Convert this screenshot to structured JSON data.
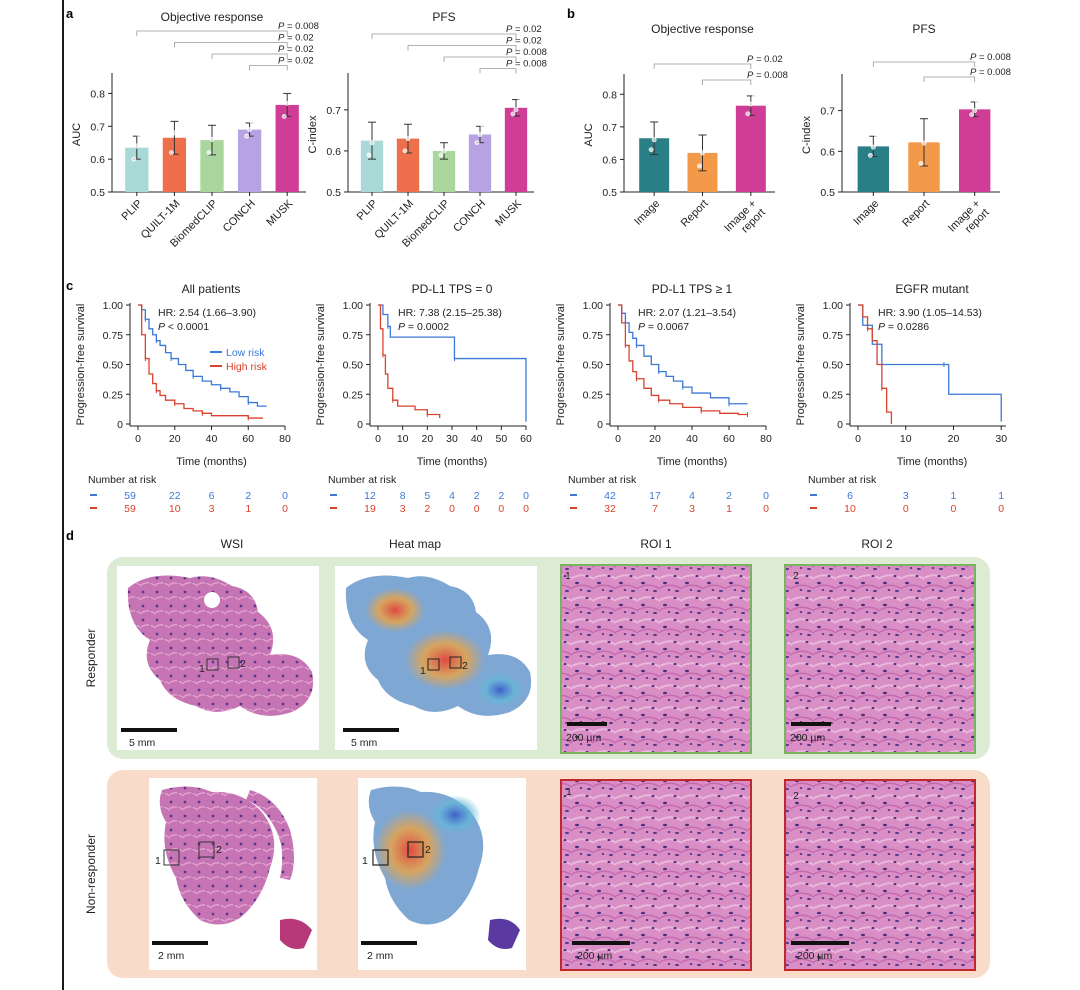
{
  "panel_letters": [
    "a",
    "b",
    "c",
    "d"
  ],
  "chart_data": [
    {
      "id": "a-objective-response",
      "type": "bar",
      "title": "Objective response",
      "ylabel": "AUC",
      "ylim": [
        0.5,
        0.85
      ],
      "yticks": [
        0.5,
        0.6,
        0.7,
        0.8
      ],
      "ytick_labels": [
        "0.5",
        "0.6",
        "0.7",
        "0.8"
      ],
      "categories": [
        "PLIP",
        "QUILT-1M",
        "BiomedCLIP",
        "CONCH",
        "MUSK"
      ],
      "values": [
        0.635,
        0.665,
        0.658,
        0.69,
        0.765
      ],
      "errors": [
        0.035,
        0.05,
        0.045,
        0.02,
        0.035
      ],
      "points": [
        [
          0.6,
          0.64,
          0.67
        ],
        [
          0.62,
          0.68,
          0.7
        ],
        [
          0.62,
          0.66,
          0.69
        ],
        [
          0.67,
          0.69,
          0.71
        ],
        [
          0.73,
          0.77,
          0.79
        ]
      ],
      "colors": [
        "#a9d9d6",
        "#ee6f4c",
        "#a8d69d",
        "#b7a2e3",
        "#cf3d97"
      ],
      "comparisons": [
        {
          "from": 0,
          "to": 4,
          "label": "P = 0.008"
        },
        {
          "from": 1,
          "to": 4,
          "label": "P = 0.02"
        },
        {
          "from": 2,
          "to": 4,
          "label": "P = 0.02"
        },
        {
          "from": 3,
          "to": 4,
          "label": "P = 0.02"
        }
      ]
    },
    {
      "id": "a-pfs",
      "type": "bar",
      "title": "PFS",
      "ylabel": "C-index",
      "ylim": [
        0.5,
        0.78
      ],
      "yticks": [
        0.5,
        0.6,
        0.7
      ],
      "ytick_labels": [
        "0.5",
        "0.6",
        "0.7"
      ],
      "categories": [
        "PLIP",
        "QUILT-1M",
        "BiomedCLIP",
        "CONCH",
        "MUSK"
      ],
      "values": [
        0.625,
        0.63,
        0.6,
        0.64,
        0.705
      ],
      "errors": [
        0.045,
        0.035,
        0.02,
        0.02,
        0.02
      ],
      "points": [
        [
          0.59,
          0.62,
          0.66
        ],
        [
          0.6,
          0.63,
          0.65
        ],
        [
          0.59,
          0.6,
          0.61
        ],
        [
          0.62,
          0.64,
          0.66
        ],
        [
          0.69,
          0.7,
          0.72
        ]
      ],
      "colors": [
        "#a9d9d6",
        "#ee6f4c",
        "#a8d69d",
        "#b7a2e3",
        "#cf3d97"
      ],
      "comparisons": [
        {
          "from": 0,
          "to": 4,
          "label": "P = 0.02"
        },
        {
          "from": 1,
          "to": 4,
          "label": "P = 0.02"
        },
        {
          "from": 2,
          "to": 4,
          "label": "P = 0.008"
        },
        {
          "from": 3,
          "to": 4,
          "label": "P = 0.008"
        }
      ]
    },
    {
      "id": "b-objective-response",
      "type": "bar",
      "title": "Objective response",
      "ylabel": "AUC",
      "ylim": [
        0.5,
        0.85
      ],
      "yticks": [
        0.5,
        0.6,
        0.7,
        0.8
      ],
      "ytick_labels": [
        "0.5",
        "0.6",
        "0.7",
        "0.8"
      ],
      "categories": [
        "Image",
        "Report",
        "Image +\nreport"
      ],
      "values": [
        0.665,
        0.62,
        0.765
      ],
      "errors": [
        0.05,
        0.055,
        0.03
      ],
      "points": [
        [
          0.63,
          0.66,
          0.7
        ],
        [
          0.58,
          0.62,
          0.66
        ],
        [
          0.74,
          0.77,
          0.79
        ]
      ],
      "colors": [
        "#2a7f86",
        "#f29a4a",
        "#cf3d97"
      ],
      "comparisons": [
        {
          "from": 0,
          "to": 2,
          "label": "P = 0.02"
        },
        {
          "from": 1,
          "to": 2,
          "label": "P = 0.008"
        }
      ]
    },
    {
      "id": "b-pfs",
      "type": "bar",
      "title": "PFS",
      "ylabel": "C-index",
      "ylim": [
        0.5,
        0.78
      ],
      "yticks": [
        0.5,
        0.6,
        0.7
      ],
      "ytick_labels": [
        "0.5",
        "0.6",
        "0.7"
      ],
      "categories": [
        "Image",
        "Report",
        "Image +\nreport"
      ],
      "values": [
        0.612,
        0.622,
        0.703
      ],
      "errors": [
        0.025,
        0.058,
        0.018
      ],
      "points": [
        [
          0.59,
          0.61,
          0.64
        ],
        [
          0.57,
          0.62,
          0.66
        ],
        [
          0.69,
          0.7,
          0.72
        ]
      ],
      "colors": [
        "#2a7f86",
        "#f29a4a",
        "#cf3d97"
      ],
      "comparisons": [
        {
          "from": 0,
          "to": 2,
          "label": "P = 0.008"
        },
        {
          "from": 1,
          "to": 2,
          "label": "P = 0.008"
        }
      ]
    },
    {
      "id": "c-all-patients",
      "type": "line",
      "title": "All patients",
      "xlabel": "Time (months)",
      "ylabel": "Progression-free survival",
      "xlim": [
        0,
        80
      ],
      "ylim": [
        0,
        1
      ],
      "xticks": [
        0,
        20,
        40,
        60,
        80
      ],
      "yticks": [
        0,
        0.25,
        0.5,
        0.75,
        1.0
      ],
      "ytick_labels": [
        "0",
        "0.25",
        "0.50",
        "0.75",
        "1.00"
      ],
      "hr_text": "HR: 2.54 (1.66–3.90)",
      "p_text": "P < 0.0001",
      "legend": [
        "Low risk",
        "High risk"
      ],
      "series": [
        {
          "name": "Low risk",
          "color": "#3b78d8",
          "x": [
            0,
            2,
            4,
            6,
            8,
            10,
            12,
            15,
            18,
            22,
            26,
            30,
            35,
            40,
            45,
            50,
            55,
            60,
            65,
            70
          ],
          "y": [
            1.0,
            0.96,
            0.88,
            0.8,
            0.75,
            0.7,
            0.66,
            0.6,
            0.55,
            0.5,
            0.45,
            0.4,
            0.36,
            0.33,
            0.3,
            0.27,
            0.23,
            0.18,
            0.15,
            0.15
          ]
        },
        {
          "name": "High risk",
          "color": "#d9432f",
          "x": [
            0,
            2,
            4,
            6,
            8,
            10,
            12,
            15,
            20,
            25,
            30,
            35,
            40,
            50,
            60,
            68
          ],
          "y": [
            1.0,
            0.75,
            0.55,
            0.42,
            0.34,
            0.28,
            0.24,
            0.2,
            0.17,
            0.13,
            0.11,
            0.09,
            0.07,
            0.07,
            0.05,
            0.05
          ]
        }
      ],
      "risk_table": {
        "times": [
          0,
          20,
          40,
          60,
          80
        ],
        "rows": [
          {
            "name": "Low risk",
            "values": [
              "59",
              "22",
              "6",
              "2",
              "0"
            ]
          },
          {
            "name": "High risk",
            "values": [
              "59",
              "10",
              "3",
              "1",
              "0"
            ]
          }
        ]
      }
    },
    {
      "id": "c-pdl1-0",
      "type": "line",
      "title": "PD-L1 TPS = 0",
      "xlabel": "Time (months)",
      "ylabel": "Progression-free survival",
      "xlim": [
        0,
        60
      ],
      "ylim": [
        0,
        1
      ],
      "xticks": [
        0,
        10,
        20,
        30,
        40,
        50,
        60
      ],
      "yticks": [
        0,
        0.25,
        0.5,
        0.75,
        1.0
      ],
      "ytick_labels": [
        "0",
        "0.25",
        "0.50",
        "0.75",
        "1.00"
      ],
      "hr_text": "HR: 7.38 (2.15–25.38)",
      "p_text": "P = 0.0002",
      "series": [
        {
          "name": "Low risk",
          "color": "#3b78d8",
          "x": [
            0,
            2,
            4,
            5,
            28,
            31,
            58,
            60
          ],
          "y": [
            1.0,
            0.92,
            0.82,
            0.73,
            0.73,
            0.55,
            0.55,
            0.02
          ]
        },
        {
          "name": "High risk",
          "color": "#d9432f",
          "x": [
            0,
            1,
            2,
            3,
            4,
            6,
            8,
            15,
            20,
            25
          ],
          "y": [
            1.0,
            0.8,
            0.58,
            0.42,
            0.3,
            0.2,
            0.15,
            0.12,
            0.08,
            0.05
          ]
        }
      ],
      "risk_table": {
        "times": [
          0,
          10,
          20,
          30,
          40,
          50,
          60
        ],
        "rows": [
          {
            "name": "Low risk",
            "values": [
              "12",
              "8",
              "5",
              "4",
              "2",
              "2",
              "0"
            ]
          },
          {
            "name": "High risk",
            "values": [
              "19",
              "3",
              "2",
              "0",
              "0",
              "0",
              "0"
            ]
          }
        ]
      }
    },
    {
      "id": "c-pdl1-1",
      "type": "line",
      "title": "PD-L1 TPS ≥ 1",
      "xlabel": "Time (months)",
      "ylabel": "Progression-free survival",
      "xlim": [
        0,
        80
      ],
      "ylim": [
        0,
        1
      ],
      "xticks": [
        0,
        20,
        40,
        60,
        80
      ],
      "yticks": [
        0,
        0.25,
        0.5,
        0.75,
        1.0
      ],
      "ytick_labels": [
        "0",
        "0.25",
        "0.50",
        "0.75",
        "1.00"
      ],
      "hr_text": "HR: 2.07 (1.21–3.54)",
      "p_text": "P = 0.0067",
      "series": [
        {
          "name": "Low risk",
          "color": "#3b78d8",
          "x": [
            0,
            2,
            4,
            6,
            8,
            10,
            14,
            18,
            22,
            26,
            30,
            35,
            40,
            50,
            60,
            70
          ],
          "y": [
            1.0,
            0.93,
            0.85,
            0.77,
            0.72,
            0.66,
            0.57,
            0.5,
            0.44,
            0.4,
            0.36,
            0.31,
            0.26,
            0.22,
            0.17,
            0.17
          ]
        },
        {
          "name": "High risk",
          "color": "#d9432f",
          "x": [
            0,
            2,
            4,
            6,
            8,
            10,
            14,
            18,
            22,
            28,
            35,
            45,
            55,
            65,
            70
          ],
          "y": [
            1.0,
            0.85,
            0.66,
            0.53,
            0.44,
            0.38,
            0.3,
            0.24,
            0.2,
            0.17,
            0.14,
            0.11,
            0.09,
            0.08,
            0.08
          ]
        }
      ],
      "risk_table": {
        "times": [
          0,
          20,
          40,
          60,
          80
        ],
        "rows": [
          {
            "name": "Low risk",
            "values": [
              "42",
              "17",
              "4",
              "2",
              "0"
            ]
          },
          {
            "name": "High risk",
            "values": [
              "32",
              "7",
              "3",
              "1",
              "0"
            ]
          }
        ]
      }
    },
    {
      "id": "c-egfr",
      "type": "line",
      "title": "EGFR mutant",
      "xlabel": "Time (months)",
      "ylabel": "Progression-free survival",
      "xlim": [
        0,
        31
      ],
      "ylim": [
        0,
        1
      ],
      "xticks": [
        0,
        10,
        20,
        30
      ],
      "yticks": [
        0,
        0.25,
        0.5,
        0.75,
        1.0
      ],
      "ytick_labels": [
        "0",
        "0.25",
        "0.50",
        "0.75",
        "1.00"
      ],
      "hr_text": "HR: 3.90 (1.05–14.53)",
      "p_text": "P = 0.0286",
      "series": [
        {
          "name": "Low risk",
          "color": "#3b78d8",
          "x": [
            0,
            1,
            2,
            3,
            5,
            18,
            19,
            30
          ],
          "y": [
            1.0,
            0.83,
            0.83,
            0.67,
            0.5,
            0.5,
            0.25,
            0.02
          ]
        },
        {
          "name": "High risk",
          "color": "#d9432f",
          "x": [
            0,
            1,
            2,
            3,
            4,
            5,
            6,
            7
          ],
          "y": [
            1.0,
            0.9,
            0.8,
            0.7,
            0.5,
            0.3,
            0.1,
            0.0
          ]
        }
      ],
      "risk_table": {
        "times": [
          0,
          10,
          20,
          30
        ],
        "rows": [
          {
            "name": "Low risk",
            "values": [
              "6",
              "3",
              "1",
              "1"
            ]
          },
          {
            "name": "High risk",
            "values": [
              "10",
              "0",
              "0",
              "0"
            ]
          }
        ]
      }
    }
  ],
  "risk_table_title": "Number at risk",
  "panel_d": {
    "columns": [
      "WSI",
      "Heat map",
      "ROI 1",
      "ROI 2"
    ],
    "rows": [
      {
        "label": "Responder",
        "bg": "#dcebd3",
        "frame": "#79b35f",
        "wsi_scale": "5 mm",
        "heat_scale": "5 mm",
        "roi_scale": "200 µm"
      },
      {
        "label": "Non-responder",
        "bg": "#f8dcc9",
        "frame": "#c0282d",
        "wsi_scale": "2 mm",
        "heat_scale": "2 mm",
        "roi_scale": "200 µm"
      }
    ],
    "roi_labels": [
      "1",
      "2"
    ]
  },
  "colors": {
    "low_risk": "#3b78d8",
    "high_risk": "#d9432f"
  }
}
